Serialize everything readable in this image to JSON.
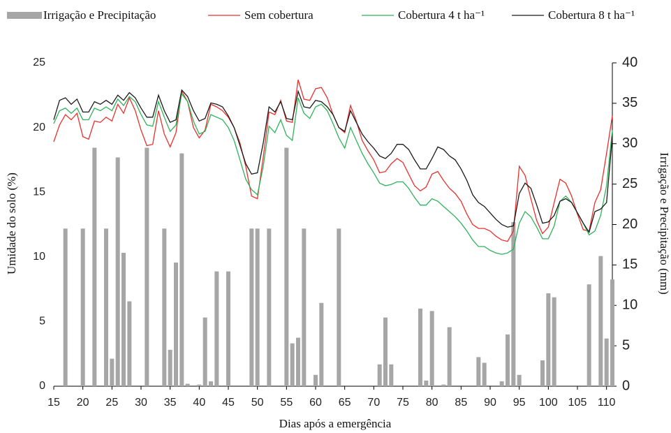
{
  "chart_data": {
    "type": "combo",
    "xlabel": "Dias após a emergência",
    "ylabel": "Umidade do solo (%)",
    "y2label": "Irrigação e Precipitação (mm)",
    "xlim": [
      15,
      111
    ],
    "xticks": [
      15,
      20,
      25,
      30,
      35,
      40,
      45,
      50,
      55,
      60,
      65,
      70,
      75,
      80,
      85,
      90,
      95,
      100,
      105,
      110
    ],
    "ylim": [
      0,
      25
    ],
    "yticks": [
      0,
      5,
      10,
      15,
      20,
      25
    ],
    "y2lim": [
      0,
      40
    ],
    "y2ticks": [
      0,
      5,
      10,
      15,
      20,
      25,
      30,
      35,
      40
    ],
    "x": [
      15,
      16,
      17,
      18,
      19,
      20,
      21,
      22,
      23,
      24,
      25,
      26,
      27,
      28,
      29,
      30,
      31,
      32,
      33,
      34,
      35,
      36,
      37,
      38,
      39,
      40,
      41,
      42,
      43,
      44,
      45,
      46,
      47,
      48,
      49,
      50,
      51,
      52,
      53,
      54,
      55,
      56,
      57,
      58,
      59,
      60,
      61,
      62,
      63,
      64,
      65,
      66,
      67,
      68,
      69,
      70,
      71,
      72,
      73,
      74,
      75,
      76,
      77,
      78,
      79,
      80,
      81,
      82,
      83,
      84,
      85,
      86,
      87,
      88,
      89,
      90,
      91,
      92,
      93,
      94,
      95,
      96,
      97,
      98,
      99,
      100,
      101,
      102,
      103,
      104,
      105,
      106,
      107,
      108,
      109,
      110,
      111
    ],
    "series": [
      {
        "name": "Irrigação e Precipitação",
        "type": "bar",
        "axis": "y2",
        "color": "#a6a6a6",
        "x": [
          17,
          20,
          22,
          24,
          25,
          26,
          27,
          28,
          31,
          34,
          35,
          36,
          37,
          38,
          40,
          41,
          42,
          43,
          45,
          49,
          50,
          52,
          55,
          56,
          57,
          58,
          60,
          61,
          64,
          71,
          72,
          73,
          78,
          79,
          80,
          82,
          83,
          88,
          89,
          92,
          93,
          94,
          95,
          99,
          100,
          101,
          107,
          109,
          110,
          111
        ],
        "values": [
          19.5,
          19.5,
          29.5,
          19.5,
          3.4,
          28.3,
          16.5,
          10.5,
          29.5,
          19.5,
          4.5,
          15.3,
          28.8,
          0.3,
          0.2,
          8.5,
          0.6,
          14.2,
          14.2,
          19.5,
          19.5,
          19.5,
          29.5,
          5.3,
          6,
          19.5,
          1.4,
          10.3,
          19.5,
          2.7,
          8.5,
          2.7,
          9.6,
          0.7,
          9.3,
          0.2,
          7.3,
          3.6,
          2.9,
          0.6,
          6.4,
          20.3,
          1.4,
          3.2,
          11.5,
          11,
          12.6,
          16.1,
          5.9,
          13.2
        ]
      },
      {
        "name": "Sem cobertura",
        "type": "line",
        "color": "#e8302c",
        "values": [
          18.9,
          20.2,
          21.0,
          20.6,
          21.1,
          19.3,
          19.1,
          20.5,
          20.4,
          20.8,
          20.5,
          21.8,
          21.1,
          22.3,
          21.3,
          19.8,
          18.6,
          18.7,
          21.3,
          19.5,
          18.5,
          19.6,
          22.8,
          22.0,
          20.0,
          19.2,
          19.8,
          21.8,
          21.6,
          21.3,
          20.8,
          20.0,
          18.8,
          17.0,
          14.7,
          14.5,
          17.7,
          21.2,
          21.0,
          22.1,
          20.5,
          20.4,
          23.7,
          22.2,
          22.1,
          23.0,
          23.1,
          22.3,
          21.0,
          20.0,
          19.6,
          21.7,
          20.5,
          19.0,
          18.2,
          17.5,
          16.5,
          16.6,
          17.2,
          17.6,
          17.3,
          16.4,
          15.5,
          15.1,
          15.4,
          16.4,
          16.6,
          15.9,
          15.3,
          14.9,
          14.3,
          13.3,
          12.5,
          12.2,
          12.2,
          12.0,
          11.6,
          11.3,
          11.2,
          12.0,
          17.0,
          16.3,
          14.5,
          12.8,
          11.8,
          12.3,
          14.2,
          16.0,
          15.7,
          14.7,
          13.3,
          12.1,
          12.0,
          14.2,
          15.2,
          18.0,
          20.9
        ]
      },
      {
        "name": "Cobertura 4 t ha⁻¹",
        "type": "line",
        "color": "#2eb35a",
        "values": [
          20.3,
          21.3,
          21.5,
          21.1,
          21.5,
          20.6,
          20.6,
          21.5,
          21.3,
          21.6,
          21.3,
          22.2,
          21.7,
          22.4,
          22.0,
          21.0,
          20.2,
          20.1,
          22.0,
          20.8,
          19.7,
          20.2,
          22.6,
          22.0,
          20.5,
          19.5,
          19.7,
          21.0,
          20.8,
          20.6,
          20.0,
          19.0,
          17.5,
          16.0,
          15.2,
          14.8,
          17.0,
          20.1,
          19.6,
          20.6,
          19.4,
          19.0,
          22.3,
          21.1,
          20.7,
          21.6,
          21.8,
          21.3,
          20.3,
          19.2,
          18.4,
          20.0,
          19.0,
          18.0,
          17.2,
          16.5,
          15.7,
          15.5,
          15.6,
          15.8,
          15.8,
          15.3,
          14.6,
          14.0,
          14.0,
          14.5,
          14.3,
          13.9,
          13.5,
          13.1,
          12.6,
          12.0,
          11.3,
          10.8,
          10.8,
          10.5,
          10.3,
          10.2,
          10.3,
          10.6,
          12.6,
          13.5,
          13.1,
          12.3,
          11.4,
          11.4,
          12.4,
          14.3,
          14.7,
          14.2,
          13.4,
          12.6,
          11.7,
          12.0,
          13.2,
          15.5,
          19.8
        ]
      },
      {
        "name": "Cobertura 8 t ha⁻¹",
        "type": "line",
        "color": "#1a1a1a",
        "values": [
          20.6,
          22.1,
          22.3,
          21.8,
          22.2,
          21.2,
          21.2,
          22.0,
          21.8,
          22.1,
          21.8,
          22.5,
          22.1,
          22.7,
          22.3,
          21.5,
          20.8,
          20.8,
          22.5,
          21.3,
          20.4,
          20.6,
          22.9,
          22.4,
          21.3,
          20.5,
          20.7,
          21.9,
          21.8,
          21.6,
          20.9,
          20.0,
          18.6,
          17.2,
          16.4,
          16.5,
          18.8,
          21.6,
          21.2,
          22.0,
          20.7,
          20.6,
          22.8,
          21.6,
          21.5,
          22.1,
          22.0,
          21.6,
          21.0,
          20.0,
          19.7,
          21.3,
          20.4,
          19.5,
          18.9,
          18.4,
          17.8,
          17.6,
          18.0,
          18.7,
          18.7,
          18.3,
          17.5,
          16.8,
          16.8,
          17.6,
          18.5,
          18.3,
          17.8,
          17.5,
          16.8,
          15.9,
          14.8,
          14.2,
          13.9,
          13.4,
          12.9,
          12.5,
          12.3,
          12.4,
          14.9,
          15.7,
          15.3,
          14.0,
          12.6,
          12.7,
          13.2,
          14.3,
          14.5,
          14.2,
          13.4,
          12.6,
          11.9,
          13.5,
          13.7,
          14.2,
          19.3
        ]
      }
    ]
  }
}
